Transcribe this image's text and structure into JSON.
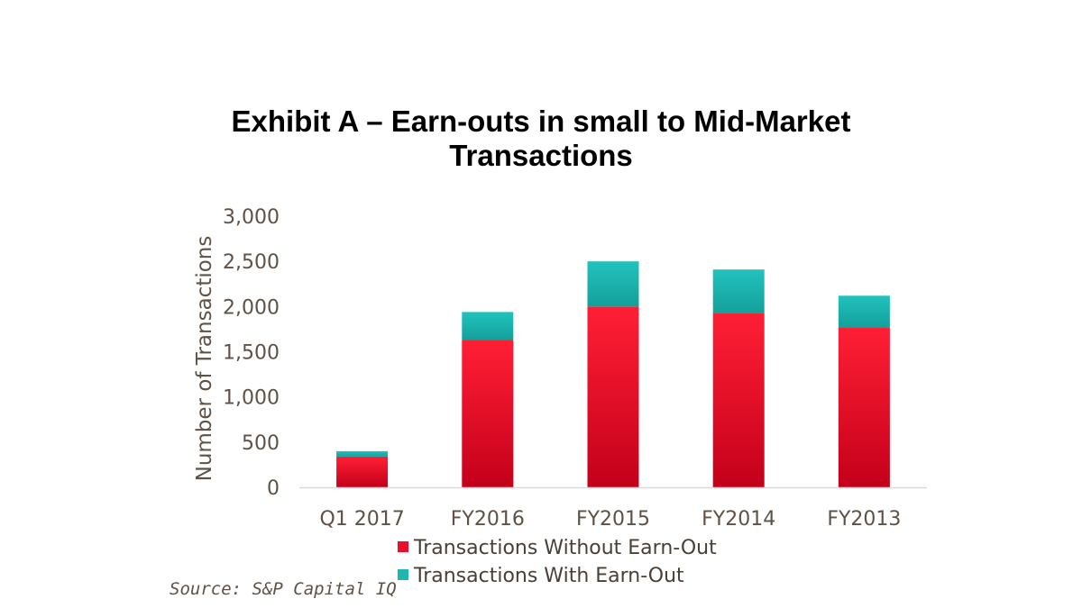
{
  "title_line1": "Exhibit A – Earn-outs in small to Mid-Market",
  "title_line2": "Transactions",
  "source": "Source: S&P Capital IQ",
  "colors": {
    "without": "#e8102a",
    "with": "#1fb5b0",
    "axis_text": "#5f5145"
  },
  "chart_data": {
    "type": "bar",
    "stacked": true,
    "categories": [
      "Q1 2017",
      "FY2016",
      "FY2015",
      "FY2014",
      "FY2013"
    ],
    "series": [
      {
        "name": "Transactions Without Earn-Out",
        "values": [
          340,
          1630,
          2000,
          1930,
          1770
        ]
      },
      {
        "name": "Transactions With Earn-Out",
        "values": [
          60,
          310,
          500,
          480,
          350
        ]
      }
    ],
    "ylabel": "Number of Transactions",
    "xlabel": "",
    "ylim": [
      0,
      3000
    ],
    "yticks": [
      "0",
      "500",
      "1,000",
      "1,500",
      "2,000",
      "2,500",
      "3,000"
    ],
    "legend_position": "bottom",
    "grid": false
  }
}
